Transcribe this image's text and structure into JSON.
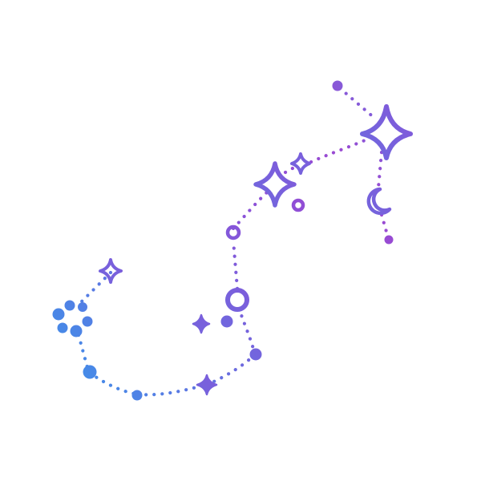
{
  "illustration": {
    "subject": "scorpius-constellation",
    "colors": {
      "gradient_start": "#3d8fe8",
      "gradient_mid": "#7e5fe0",
      "gradient_end": "#9a4fd4",
      "background": "#ffffff"
    },
    "icons": [
      "four-point-star-icon",
      "crescent-moon-icon",
      "ring-icon",
      "dot-icon",
      "dotted-line"
    ]
  }
}
